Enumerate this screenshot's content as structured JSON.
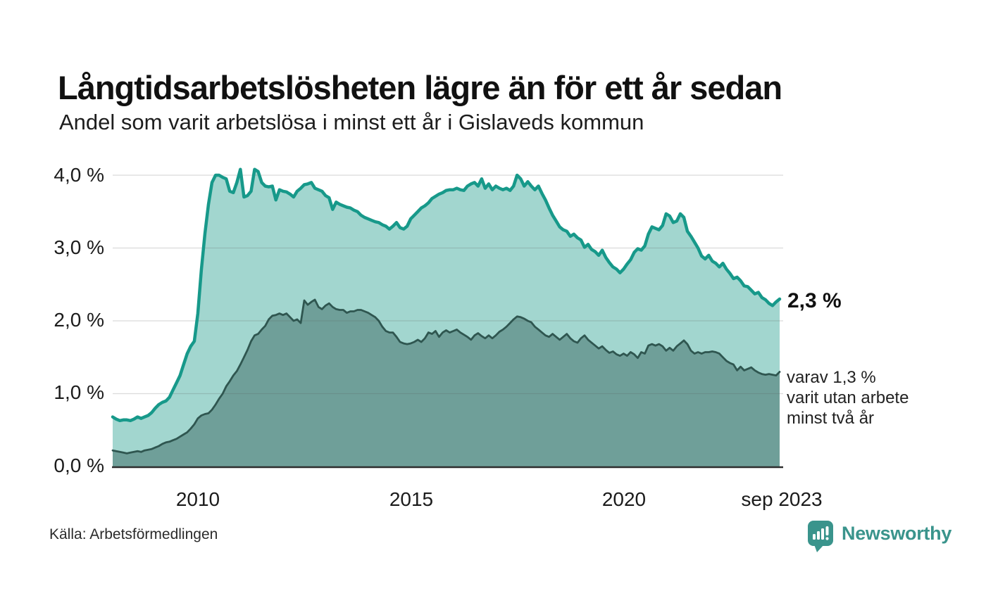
{
  "header": {
    "title": "Långtidsarbetslösheten lägre än för ett år sedan",
    "subtitle": "Andel som varit arbetslösa i minst ett år i Gislaveds kommun"
  },
  "chart": {
    "y_axis": {
      "tick_labels": [
        "0,0 %",
        "1,0 %",
        "2,0 %",
        "3,0 %",
        "4,0 %"
      ]
    },
    "x_axis": {
      "tick_labels": [
        "2010",
        "2015",
        "2020",
        "sep 2023"
      ]
    },
    "annotations": {
      "latest_total": "2,3 %",
      "two_year_line1": "varav 1,3 %",
      "two_year_line2": "varit utan arbete",
      "two_year_line3": "minst två år"
    }
  },
  "chart_data": {
    "type": "area",
    "title": "Långtidsarbetslösheten lägre än för ett år sedan",
    "subtitle": "Andel som varit arbetslösa i minst ett år i Gislaveds kommun",
    "unit": "%",
    "frequency": "monthly",
    "x_start": "2008-01",
    "x_end": "2023-09",
    "ylim": [
      0,
      4.0
    ],
    "y_tick_values": [
      0,
      1,
      2,
      3,
      4
    ],
    "x_ticks": [
      {
        "label": "2010",
        "month_index": 24
      },
      {
        "label": "2015",
        "month_index": 84
      },
      {
        "label": "2020",
        "month_index": 144
      },
      {
        "label": "sep 2023",
        "month_index": 188
      }
    ],
    "grid": "horizontal",
    "legend": "none",
    "series": [
      {
        "name": "Arbetslösa minst ett år",
        "latest_value": 2.3,
        "line_color": "#17998a",
        "fill_color": "#a2d6cf",
        "line_width": 4.5,
        "values": [
          0.68,
          0.65,
          0.63,
          0.64,
          0.64,
          0.63,
          0.65,
          0.68,
          0.66,
          0.68,
          0.7,
          0.74,
          0.8,
          0.85,
          0.88,
          0.9,
          0.95,
          1.05,
          1.15,
          1.25,
          1.4,
          1.55,
          1.65,
          1.72,
          2.1,
          2.7,
          3.2,
          3.6,
          3.9,
          4.0,
          4.0,
          3.97,
          3.95,
          3.78,
          3.76,
          3.9,
          4.08,
          3.7,
          3.72,
          3.78,
          4.08,
          4.05,
          3.9,
          3.85,
          3.84,
          3.85,
          3.66,
          3.8,
          3.78,
          3.77,
          3.74,
          3.7,
          3.78,
          3.82,
          3.87,
          3.88,
          3.9,
          3.82,
          3.8,
          3.78,
          3.72,
          3.69,
          3.53,
          3.63,
          3.6,
          3.58,
          3.56,
          3.55,
          3.52,
          3.5,
          3.45,
          3.42,
          3.4,
          3.38,
          3.36,
          3.35,
          3.32,
          3.3,
          3.26,
          3.3,
          3.35,
          3.28,
          3.26,
          3.3,
          3.4,
          3.45,
          3.5,
          3.55,
          3.58,
          3.62,
          3.68,
          3.71,
          3.74,
          3.76,
          3.79,
          3.8,
          3.8,
          3.82,
          3.8,
          3.79,
          3.85,
          3.88,
          3.9,
          3.85,
          3.95,
          3.82,
          3.88,
          3.8,
          3.85,
          3.82,
          3.8,
          3.82,
          3.79,
          3.85,
          4.0,
          3.95,
          3.85,
          3.91,
          3.85,
          3.8,
          3.85,
          3.75,
          3.66,
          3.55,
          3.45,
          3.37,
          3.29,
          3.25,
          3.23,
          3.16,
          3.19,
          3.14,
          3.11,
          3.01,
          3.05,
          2.98,
          2.95,
          2.9,
          2.97,
          2.87,
          2.8,
          2.74,
          2.71,
          2.66,
          2.71,
          2.78,
          2.84,
          2.94,
          2.99,
          2.97,
          3.03,
          3.19,
          3.29,
          3.27,
          3.25,
          3.31,
          3.47,
          3.44,
          3.35,
          3.37,
          3.47,
          3.42,
          3.23,
          3.16,
          3.08,
          3.0,
          2.89,
          2.85,
          2.9,
          2.82,
          2.79,
          2.74,
          2.79,
          2.71,
          2.65,
          2.58,
          2.6,
          2.55,
          2.48,
          2.47,
          2.42,
          2.37,
          2.39,
          2.32,
          2.29,
          2.24,
          2.21,
          2.26,
          2.3
        ]
      },
      {
        "name": "Arbetslösa minst två år",
        "latest_value": 1.3,
        "line_color": "#2f5650",
        "fill_color": "#6f9f99",
        "line_width": 2.8,
        "values": [
          0.22,
          0.21,
          0.2,
          0.19,
          0.18,
          0.19,
          0.2,
          0.21,
          0.2,
          0.22,
          0.23,
          0.24,
          0.26,
          0.28,
          0.31,
          0.33,
          0.34,
          0.36,
          0.38,
          0.41,
          0.44,
          0.47,
          0.52,
          0.58,
          0.66,
          0.7,
          0.72,
          0.73,
          0.78,
          0.85,
          0.93,
          1.0,
          1.1,
          1.17,
          1.25,
          1.31,
          1.4,
          1.5,
          1.6,
          1.72,
          1.8,
          1.82,
          1.88,
          1.93,
          2.02,
          2.07,
          2.08,
          2.1,
          2.08,
          2.1,
          2.05,
          2.0,
          2.02,
          1.97,
          2.28,
          2.22,
          2.26,
          2.29,
          2.19,
          2.16,
          2.21,
          2.24,
          2.19,
          2.16,
          2.15,
          2.15,
          2.11,
          2.13,
          2.13,
          2.15,
          2.15,
          2.13,
          2.11,
          2.08,
          2.05,
          2.0,
          1.92,
          1.86,
          1.84,
          1.84,
          1.78,
          1.71,
          1.69,
          1.68,
          1.69,
          1.71,
          1.74,
          1.71,
          1.76,
          1.84,
          1.82,
          1.86,
          1.78,
          1.84,
          1.87,
          1.84,
          1.86,
          1.88,
          1.84,
          1.81,
          1.78,
          1.74,
          1.8,
          1.83,
          1.79,
          1.76,
          1.8,
          1.76,
          1.8,
          1.85,
          1.88,
          1.92,
          1.97,
          2.02,
          2.06,
          2.05,
          2.03,
          2.0,
          1.98,
          1.92,
          1.88,
          1.84,
          1.8,
          1.78,
          1.82,
          1.78,
          1.74,
          1.78,
          1.82,
          1.76,
          1.72,
          1.7,
          1.76,
          1.8,
          1.74,
          1.7,
          1.66,
          1.62,
          1.65,
          1.6,
          1.56,
          1.58,
          1.54,
          1.52,
          1.55,
          1.52,
          1.57,
          1.54,
          1.49,
          1.57,
          1.55,
          1.66,
          1.68,
          1.66,
          1.68,
          1.65,
          1.59,
          1.63,
          1.59,
          1.65,
          1.69,
          1.73,
          1.68,
          1.59,
          1.55,
          1.57,
          1.55,
          1.57,
          1.57,
          1.58,
          1.57,
          1.55,
          1.5,
          1.45,
          1.42,
          1.4,
          1.32,
          1.37,
          1.32,
          1.34,
          1.36,
          1.32,
          1.29,
          1.27,
          1.26,
          1.27,
          1.26,
          1.25,
          1.3
        ]
      }
    ]
  },
  "footer": {
    "source": "Källa: Arbetsförmedlingen",
    "brand_name": "Newsworthy"
  },
  "colors": {
    "accent_teal": "#17998a",
    "light_fill": "#a2d6cf",
    "dark_fill": "#6f9f99",
    "dark_line": "#2f5650",
    "gridline": "#d9d9d9",
    "axis_line": "#2e2e2e",
    "brand_teal": "#3a948c"
  }
}
